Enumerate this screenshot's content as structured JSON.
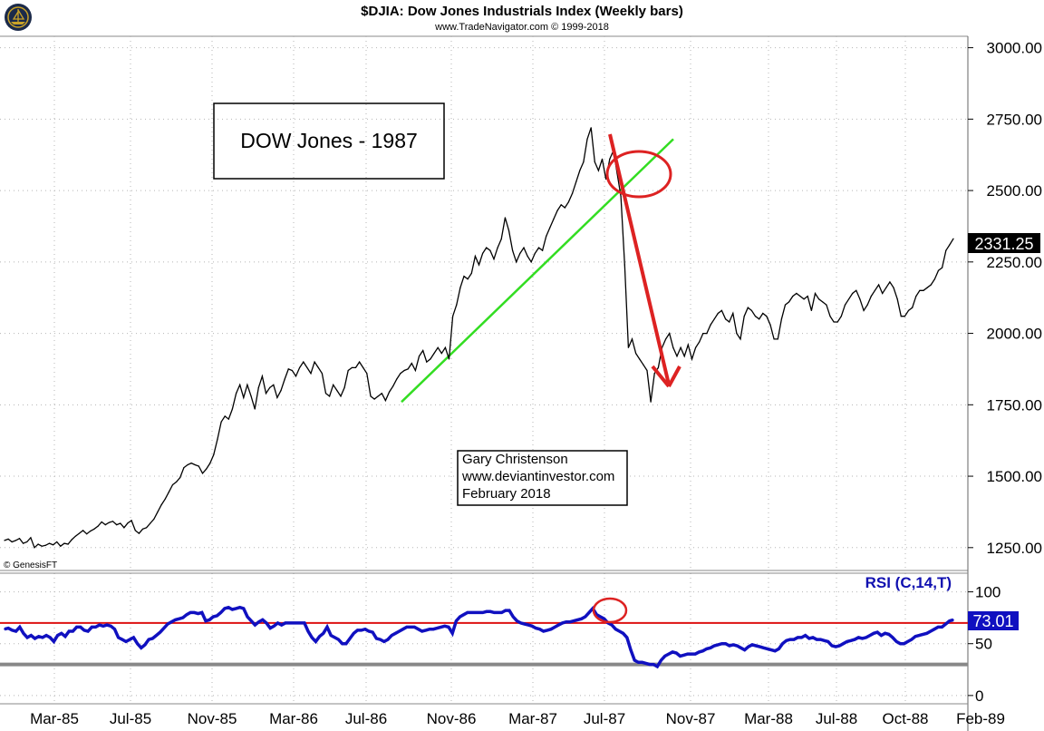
{
  "header": {
    "title": "$DJIA:  Dow Jones Industrials Index  (Weekly bars)",
    "subtitle": "www.TradeNavigator.com © 1999-2018"
  },
  "copyright": "© GenesisFT",
  "annotation_box": {
    "text": "DOW Jones - 1987"
  },
  "author_box": {
    "line1": "Gary Christenson",
    "line2": "www.deviantinvestor.com",
    "line3": "February 2018"
  },
  "colors": {
    "price_line": "#000000",
    "trend_line": "#33dd22",
    "annotation_red": "#dd2222",
    "rsi_line": "#1010c0",
    "rsi_overbought": "#dd1111",
    "rsi_oversold": "#888888",
    "last_label_bg": "#000000",
    "rsi_label_bg": "#1010c0"
  },
  "icons": {
    "logo": "ship-logo-icon"
  },
  "chart_data": [
    {
      "type": "line",
      "title": "$DJIA:  Dow Jones Industrials Index  (Weekly bars)",
      "ylim": [
        1170,
        3040
      ],
      "y_ticks": [
        "3000.00",
        "2750.00",
        "2500.00",
        "2250.00",
        "2000.00",
        "1750.00",
        "1500.00",
        "1250.00"
      ],
      "y_tick_values": [
        3000,
        2750,
        2500,
        2250,
        2000,
        1750,
        1500,
        1250
      ],
      "x_ticks": [
        "Mar-85",
        "Jul-85",
        "Nov-85",
        "Mar-86",
        "Jul-86",
        "Nov-86",
        "Mar-87",
        "Jul-87",
        "Nov-87",
        "Mar-88",
        "Jul-88",
        "Oct-88",
        "Feb-89"
      ],
      "last_value_label": "2331.25",
      "series": [
        {
          "values": [
            1275,
            1280,
            1270,
            1275,
            1282,
            1265,
            1270,
            1285,
            1250,
            1262,
            1255,
            1258,
            1265,
            1260,
            1270,
            1255,
            1265,
            1262,
            1278,
            1290,
            1300,
            1310,
            1298,
            1308,
            1315,
            1325,
            1340,
            1330,
            1338,
            1342,
            1330,
            1335,
            1320,
            1336,
            1345,
            1310,
            1300,
            1315,
            1320,
            1335,
            1350,
            1375,
            1400,
            1420,
            1445,
            1470,
            1480,
            1495,
            1530,
            1540,
            1546,
            1540,
            1535,
            1510,
            1525,
            1545,
            1575,
            1630,
            1690,
            1710,
            1700,
            1735,
            1790,
            1820,
            1775,
            1820,
            1780,
            1735,
            1810,
            1850,
            1790,
            1810,
            1820,
            1775,
            1800,
            1840,
            1875,
            1870,
            1850,
            1880,
            1900,
            1880,
            1860,
            1900,
            1880,
            1860,
            1790,
            1780,
            1820,
            1800,
            1780,
            1810,
            1870,
            1880,
            1880,
            1900,
            1880,
            1860,
            1780,
            1770,
            1780,
            1790,
            1765,
            1795,
            1815,
            1840,
            1860,
            1870,
            1875,
            1895,
            1870,
            1920,
            1940,
            1900,
            1910,
            1930,
            1950,
            1930,
            1950,
            1910,
            2060,
            2100,
            2160,
            2200,
            2190,
            2210,
            2270,
            2240,
            2280,
            2300,
            2290,
            2260,
            2300,
            2330,
            2405,
            2360,
            2290,
            2250,
            2280,
            2300,
            2270,
            2250,
            2280,
            2300,
            2290,
            2340,
            2370,
            2400,
            2430,
            2450,
            2440,
            2460,
            2490,
            2530,
            2570,
            2600,
            2680,
            2720,
            2600,
            2570,
            2610,
            2540,
            2610,
            2640,
            2560,
            2480,
            2240,
            1950,
            1980,
            1930,
            1910,
            1890,
            1870,
            1760,
            1860,
            1880,
            1950,
            1980,
            2000,
            1950,
            1920,
            1950,
            1920,
            1960,
            1910,
            1950,
            1970,
            2000,
            2000,
            2030,
            2050,
            2070,
            2080,
            2050,
            2040,
            2070,
            2000,
            1980,
            2060,
            2090,
            2080,
            2060,
            2050,
            2070,
            2060,
            2030,
            1980,
            1980,
            2050,
            2100,
            2110,
            2130,
            2140,
            2130,
            2120,
            2130,
            2080,
            2140,
            2120,
            2110,
            2100,
            2060,
            2040,
            2040,
            2060,
            2100,
            2120,
            2140,
            2150,
            2120,
            2080,
            2100,
            2130,
            2150,
            2170,
            2140,
            2160,
            2180,
            2160,
            2120,
            2060,
            2060,
            2080,
            2090,
            2130,
            2150,
            2150,
            2160,
            2170,
            2190,
            2220,
            2230,
            2290,
            2310,
            2331.25
          ]
        }
      ],
      "trend_line": {
        "from": [
          "Sep-86",
          1760
        ],
        "to": [
          "Sep-87",
          2680
        ]
      }
    },
    {
      "type": "line",
      "title": "RSI (C,14,T)",
      "ylim": [
        -8,
        118
      ],
      "y_ticks": [
        "100",
        "50",
        "0"
      ],
      "y_tick_values": [
        100,
        50,
        0
      ],
      "last_value_label": "73.01",
      "overbought_level": 70,
      "oversold_level": 30,
      "series": [
        {
          "values": [
            64,
            65,
            63,
            62,
            66,
            60,
            56,
            58,
            55,
            57,
            56,
            58,
            56,
            52,
            58,
            60,
            57,
            62,
            62,
            66,
            66,
            63,
            62,
            66,
            66,
            68,
            67,
            68,
            67,
            64,
            56,
            54,
            52,
            54,
            56,
            50,
            46,
            49,
            54,
            55,
            58,
            61,
            65,
            69,
            71,
            73,
            74,
            75,
            78,
            80,
            80,
            79,
            80,
            72,
            73,
            76,
            77,
            80,
            84,
            85,
            83,
            84,
            85,
            84,
            76,
            72,
            68,
            71,
            73,
            70,
            65,
            67,
            70,
            68,
            70,
            70,
            70,
            70,
            70,
            70,
            62,
            56,
            52,
            57,
            60,
            66,
            58,
            56,
            54,
            50,
            50,
            55,
            60,
            63,
            63,
            64,
            62,
            61,
            55,
            54,
            52,
            54,
            58,
            60,
            62,
            64,
            66,
            66,
            66,
            64,
            62,
            63,
            64,
            64,
            65,
            66,
            67,
            66,
            60,
            72,
            76,
            78,
            80,
            80,
            80,
            80,
            80,
            81,
            81,
            80,
            80,
            80,
            82,
            82,
            76,
            72,
            70,
            69,
            68,
            67,
            65,
            64,
            62,
            63,
            64,
            66,
            68,
            70,
            71,
            71,
            72,
            73,
            74,
            76,
            80,
            84,
            78,
            76,
            74,
            70,
            68,
            64,
            62,
            60,
            56,
            44,
            34,
            32,
            32,
            31,
            30,
            30,
            28,
            34,
            38,
            40,
            42,
            41,
            38,
            39,
            40,
            40,
            40,
            42,
            43,
            45,
            46,
            48,
            49,
            50,
            50,
            48,
            49,
            48,
            46,
            44,
            47,
            49,
            48,
            47,
            46,
            45,
            44,
            43,
            45,
            50,
            53,
            54,
            54,
            56,
            56,
            58,
            55,
            56,
            54,
            54,
            53,
            52,
            48,
            47,
            48,
            50,
            52,
            53,
            54,
            56,
            55,
            56,
            58,
            60,
            61,
            58,
            60,
            59,
            56,
            52,
            50,
            50,
            52,
            54,
            57,
            58,
            59,
            60,
            62,
            64,
            66,
            66,
            69,
            72,
            73.01
          ]
        }
      ]
    }
  ]
}
